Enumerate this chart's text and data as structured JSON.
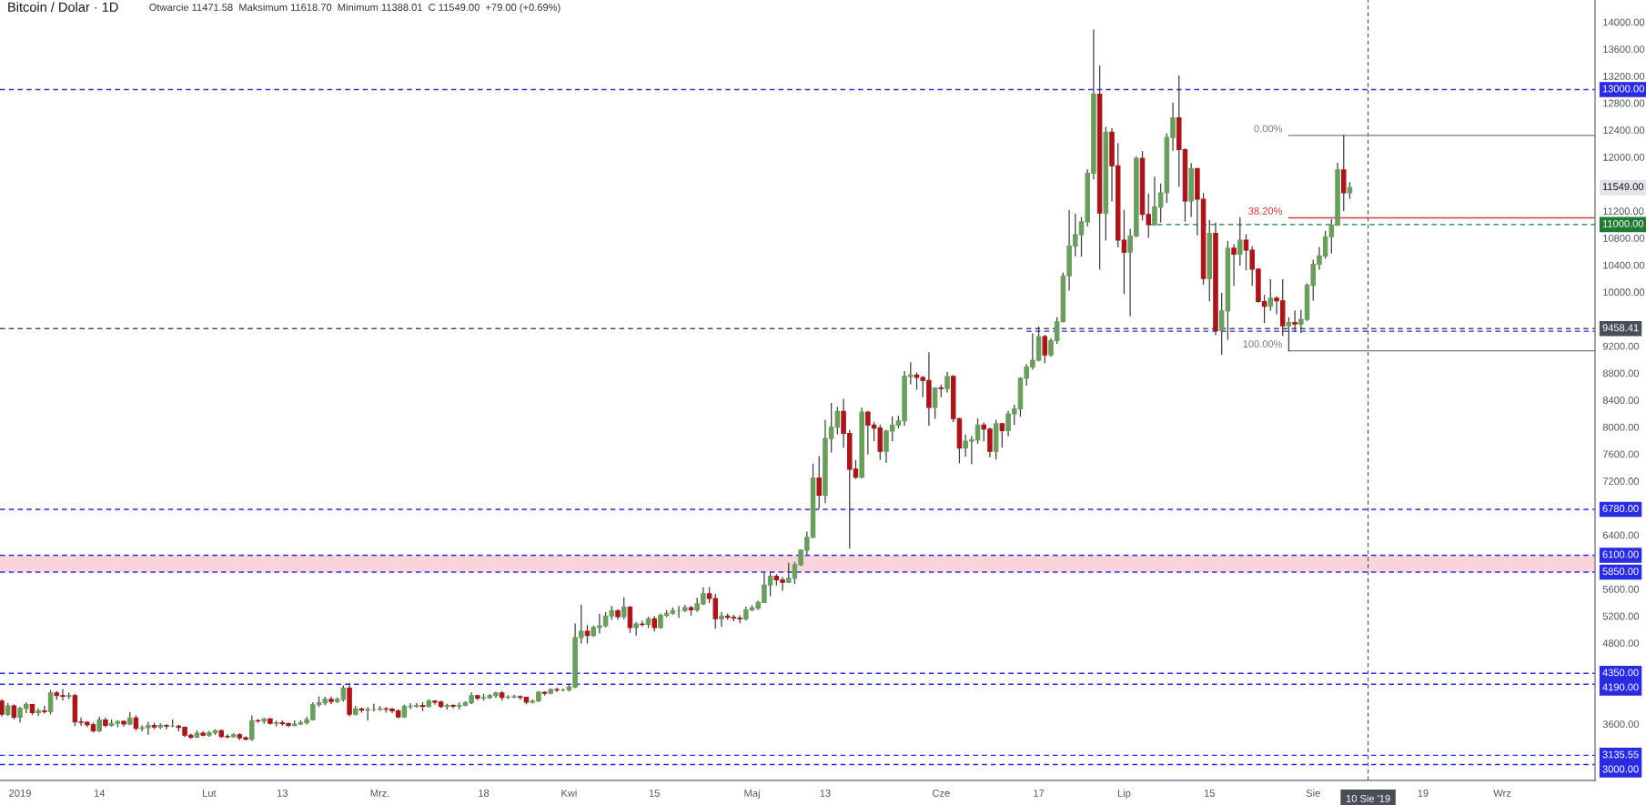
{
  "chart_data": {
    "type": "candlestick",
    "title": "Bitcoin / Dolar · 1D",
    "subtitle": "Otwarcie 11471.58  Maksimum 11618.70  Minimum 11388.01  C 11549.00  +79.00 (+0.69%)",
    "x": [
      "2018-12-29",
      "2018-12-30",
      "2018-12-31",
      "2019-01-01",
      "2019-01-02",
      "2019-01-03",
      "2019-01-04",
      "2019-01-05",
      "2019-01-06",
      "2019-01-07",
      "2019-01-08",
      "2019-01-09",
      "2019-01-10",
      "2019-01-11",
      "2019-01-12",
      "2019-01-13",
      "2019-01-14",
      "2019-01-15",
      "2019-01-16",
      "2019-01-17",
      "2019-01-18",
      "2019-01-19",
      "2019-01-20",
      "2019-01-21",
      "2019-01-22",
      "2019-01-23",
      "2019-01-24",
      "2019-01-25",
      "2019-01-26",
      "2019-01-27",
      "2019-01-28",
      "2019-01-29",
      "2019-01-30",
      "2019-01-31",
      "2019-02-01",
      "2019-02-02",
      "2019-02-03",
      "2019-02-04",
      "2019-02-05",
      "2019-02-06",
      "2019-02-07",
      "2019-02-08",
      "2019-02-09",
      "2019-02-10",
      "2019-02-11",
      "2019-02-12",
      "2019-02-13",
      "2019-02-14",
      "2019-02-15",
      "2019-02-16",
      "2019-02-17",
      "2019-02-18",
      "2019-02-19",
      "2019-02-20",
      "2019-02-21",
      "2019-02-22",
      "2019-02-23",
      "2019-02-24",
      "2019-02-25",
      "2019-02-26",
      "2019-02-27",
      "2019-02-28",
      "2019-03-01",
      "2019-03-02",
      "2019-03-03",
      "2019-03-04",
      "2019-03-05",
      "2019-03-06",
      "2019-03-07",
      "2019-03-08",
      "2019-03-09",
      "2019-03-10",
      "2019-03-11",
      "2019-03-12",
      "2019-03-13",
      "2019-03-14",
      "2019-03-15",
      "2019-03-16",
      "2019-03-17",
      "2019-03-18",
      "2019-03-19",
      "2019-03-20",
      "2019-03-21",
      "2019-03-22",
      "2019-03-23",
      "2019-03-24",
      "2019-03-25",
      "2019-03-26",
      "2019-03-27",
      "2019-03-28",
      "2019-03-29",
      "2019-03-30",
      "2019-03-31",
      "2019-04-01",
      "2019-04-02",
      "2019-04-03",
      "2019-04-04",
      "2019-04-05",
      "2019-04-06",
      "2019-04-07",
      "2019-04-08",
      "2019-04-09",
      "2019-04-10",
      "2019-04-11",
      "2019-04-12",
      "2019-04-13",
      "2019-04-14",
      "2019-04-15",
      "2019-04-16",
      "2019-04-17",
      "2019-04-18",
      "2019-04-19",
      "2019-04-20",
      "2019-04-21",
      "2019-04-22",
      "2019-04-23",
      "2019-04-24",
      "2019-04-25",
      "2019-04-26",
      "2019-04-27",
      "2019-04-28",
      "2019-04-29",
      "2019-04-30",
      "2019-05-01",
      "2019-05-02",
      "2019-05-03",
      "2019-05-04",
      "2019-05-05",
      "2019-05-06",
      "2019-05-07",
      "2019-05-08",
      "2019-05-09",
      "2019-05-10",
      "2019-05-11",
      "2019-05-12",
      "2019-05-13",
      "2019-05-14",
      "2019-05-15",
      "2019-05-16",
      "2019-05-17",
      "2019-05-18",
      "2019-05-19",
      "2019-05-20",
      "2019-05-21",
      "2019-05-22",
      "2019-05-23",
      "2019-05-24",
      "2019-05-25",
      "2019-05-26",
      "2019-05-27",
      "2019-05-28",
      "2019-05-29",
      "2019-05-30",
      "2019-05-31",
      "2019-06-01",
      "2019-06-02",
      "2019-06-03",
      "2019-06-04",
      "2019-06-05",
      "2019-06-06",
      "2019-06-07",
      "2019-06-08",
      "2019-06-09",
      "2019-06-10",
      "2019-06-11",
      "2019-06-12",
      "2019-06-13",
      "2019-06-14",
      "2019-06-15",
      "2019-06-16",
      "2019-06-17",
      "2019-06-18",
      "2019-06-19",
      "2019-06-20",
      "2019-06-21",
      "2019-06-22",
      "2019-06-23",
      "2019-06-24",
      "2019-06-25",
      "2019-06-26",
      "2019-06-27",
      "2019-06-28",
      "2019-06-29",
      "2019-06-30",
      "2019-07-01",
      "2019-07-02",
      "2019-07-03",
      "2019-07-04",
      "2019-07-05",
      "2019-07-06",
      "2019-07-07",
      "2019-07-08",
      "2019-07-09",
      "2019-07-10",
      "2019-07-11",
      "2019-07-12",
      "2019-07-13",
      "2019-07-14",
      "2019-07-15",
      "2019-07-16",
      "2019-07-17",
      "2019-07-18",
      "2019-07-19",
      "2019-07-20",
      "2019-07-21",
      "2019-07-22",
      "2019-07-23",
      "2019-07-24",
      "2019-07-25",
      "2019-07-26",
      "2019-07-27",
      "2019-07-28",
      "2019-07-29",
      "2019-07-30",
      "2019-07-31",
      "2019-08-01",
      "2019-08-02",
      "2019-08-03",
      "2019-08-04",
      "2019-08-05",
      "2019-08-06",
      "2019-08-07"
    ],
    "ohlc": [
      [
        3940,
        3960,
        3720,
        3745
      ],
      [
        3745,
        3900,
        3730,
        3870
      ],
      [
        3870,
        3885,
        3680,
        3700
      ],
      [
        3700,
        3845,
        3630,
        3830
      ],
      [
        3830,
        3915,
        3770,
        3890
      ],
      [
        3890,
        3890,
        3745,
        3770
      ],
      [
        3770,
        3820,
        3730,
        3795
      ],
      [
        3795,
        3860,
        3760,
        3785
      ],
      [
        3785,
        4095,
        3750,
        4060
      ],
      [
        4060,
        4080,
        3970,
        4020
      ],
      [
        4020,
        4110,
        3960,
        4010
      ],
      [
        4010,
        4060,
        3980,
        4020
      ],
      [
        4020,
        4040,
        3580,
        3630
      ],
      [
        3630,
        3690,
        3580,
        3625
      ],
      [
        3625,
        3635,
        3560,
        3590
      ],
      [
        3590,
        3615,
        3480,
        3500
      ],
      [
        3500,
        3700,
        3490,
        3660
      ],
      [
        3660,
        3690,
        3560,
        3580
      ],
      [
        3580,
        3660,
        3570,
        3610
      ],
      [
        3610,
        3650,
        3560,
        3640
      ],
      [
        3640,
        3645,
        3570,
        3600
      ],
      [
        3600,
        3770,
        3590,
        3690
      ],
      [
        3690,
        3720,
        3510,
        3535
      ],
      [
        3535,
        3575,
        3500,
        3545
      ],
      [
        3545,
        3625,
        3450,
        3580
      ],
      [
        3580,
        3610,
        3530,
        3555
      ],
      [
        3555,
        3600,
        3535,
        3580
      ],
      [
        3580,
        3585,
        3530,
        3570
      ],
      [
        3570,
        3660,
        3560,
        3570
      ],
      [
        3570,
        3580,
        3500,
        3550
      ],
      [
        3550,
        3555,
        3415,
        3435
      ],
      [
        3435,
        3450,
        3385,
        3405
      ],
      [
        3405,
        3495,
        3400,
        3465
      ],
      [
        3465,
        3485,
        3425,
        3435
      ],
      [
        3435,
        3490,
        3420,
        3470
      ],
      [
        3470,
        3515,
        3445,
        3500
      ],
      [
        3500,
        3510,
        3400,
        3415
      ],
      [
        3415,
        3440,
        3395,
        3410
      ],
      [
        3410,
        3455,
        3405,
        3440
      ],
      [
        3440,
        3455,
        3370,
        3395
      ],
      [
        3395,
        3410,
        3365,
        3375
      ],
      [
        3375,
        3720,
        3360,
        3650
      ],
      [
        3650,
        3665,
        3625,
        3645
      ],
      [
        3645,
        3680,
        3610,
        3675
      ],
      [
        3675,
        3680,
        3600,
        3610
      ],
      [
        3610,
        3640,
        3575,
        3620
      ],
      [
        3620,
        3650,
        3585,
        3605
      ],
      [
        3605,
        3615,
        3560,
        3580
      ],
      [
        3580,
        3645,
        3575,
        3600
      ],
      [
        3600,
        3650,
        3595,
        3620
      ],
      [
        3620,
        3700,
        3600,
        3665
      ],
      [
        3665,
        3915,
        3660,
        3885
      ],
      [
        3885,
        4000,
        3860,
        3915
      ],
      [
        3915,
        3995,
        3885,
        3965
      ],
      [
        3965,
        4000,
        3905,
        3935
      ],
      [
        3935,
        3985,
        3920,
        3965
      ],
      [
        3965,
        4165,
        3940,
        4130
      ],
      [
        4130,
        4200,
        3720,
        3745
      ],
      [
        3745,
        3860,
        3735,
        3825
      ],
      [
        3825,
        3835,
        3775,
        3805
      ],
      [
        3805,
        3840,
        3660,
        3815
      ],
      [
        3815,
        3890,
        3795,
        3815
      ],
      [
        3815,
        3860,
        3805,
        3825
      ],
      [
        3825,
        3840,
        3775,
        3820
      ],
      [
        3820,
        3830,
        3770,
        3795
      ],
      [
        3795,
        3810,
        3695,
        3705
      ],
      [
        3705,
        3880,
        3700,
        3860
      ],
      [
        3860,
        3900,
        3830,
        3865
      ],
      [
        3865,
        3900,
        3850,
        3875
      ],
      [
        3875,
        3915,
        3800,
        3860
      ],
      [
        3860,
        3960,
        3855,
        3940
      ],
      [
        3940,
        3945,
        3895,
        3925
      ],
      [
        3925,
        3935,
        3845,
        3860
      ],
      [
        3860,
        3890,
        3820,
        3875
      ],
      [
        3875,
        3885,
        3840,
        3865
      ],
      [
        3865,
        3910,
        3825,
        3875
      ],
      [
        3875,
        3930,
        3870,
        3915
      ],
      [
        3915,
        4060,
        3905,
        4020
      ],
      [
        4020,
        4025,
        3960,
        3985
      ],
      [
        3985,
        4040,
        3955,
        3990
      ],
      [
        3990,
        4035,
        3980,
        4020
      ],
      [
        4020,
        4070,
        3995,
        4060
      ],
      [
        4060,
        4080,
        3955,
        3995
      ],
      [
        3995,
        4020,
        3980,
        4000
      ],
      [
        4000,
        4025,
        3990,
        4005
      ],
      [
        4005,
        4015,
        3970,
        3995
      ],
      [
        3995,
        3995,
        3900,
        3925
      ],
      [
        3925,
        3955,
        3910,
        3940
      ],
      [
        3940,
        4080,
        3935,
        4070
      ],
      [
        4070,
        4075,
        4030,
        4055
      ],
      [
        4055,
        4120,
        4050,
        4110
      ],
      [
        4110,
        4130,
        4080,
        4105
      ],
      [
        4105,
        4120,
        4090,
        4105
      ],
      [
        4105,
        4170,
        4090,
        4150
      ],
      [
        4150,
        5080,
        4140,
        4880
      ],
      [
        4880,
        5360,
        4800,
        4975
      ],
      [
        4975,
        5060,
        4800,
        4910
      ],
      [
        4910,
        5050,
        4900,
        5030
      ],
      [
        5030,
        5225,
        4950,
        5055
      ],
      [
        5055,
        5250,
        5040,
        5200
      ],
      [
        5200,
        5340,
        5150,
        5280
      ],
      [
        5280,
        5290,
        5150,
        5190
      ],
      [
        5190,
        5470,
        5160,
        5330
      ],
      [
        5330,
        5340,
        4960,
        5030
      ],
      [
        5030,
        5100,
        4920,
        5080
      ],
      [
        5080,
        5120,
        5050,
        5075
      ],
      [
        5075,
        5180,
        5030,
        5160
      ],
      [
        5160,
        5190,
        4980,
        5030
      ],
      [
        5030,
        5230,
        5020,
        5210
      ],
      [
        5210,
        5280,
        5190,
        5240
      ],
      [
        5240,
        5320,
        5230,
        5280
      ],
      [
        5280,
        5340,
        5180,
        5280
      ],
      [
        5280,
        5355,
        5265,
        5325
      ],
      [
        5325,
        5340,
        5215,
        5290
      ],
      [
        5290,
        5460,
        5270,
        5380
      ],
      [
        5380,
        5620,
        5370,
        5530
      ],
      [
        5530,
        5620,
        5400,
        5460
      ],
      [
        5460,
        5520,
        5020,
        5160
      ],
      [
        5160,
        5250,
        5050,
        5200
      ],
      [
        5200,
        5230,
        5150,
        5180
      ],
      [
        5180,
        5210,
        5130,
        5170
      ],
      [
        5170,
        5200,
        5100,
        5160
      ],
      [
        5160,
        5330,
        5140,
        5290
      ],
      [
        5290,
        5350,
        5280,
        5320
      ],
      [
        5320,
        5420,
        5300,
        5400
      ],
      [
        5400,
        5830,
        5400,
        5660
      ],
      [
        5660,
        5850,
        5500,
        5790
      ],
      [
        5790,
        5810,
        5660,
        5735
      ],
      [
        5735,
        5770,
        5580,
        5700
      ],
      [
        5700,
        5980,
        5700,
        5760
      ],
      [
        5760,
        5990,
        5680,
        5960
      ],
      [
        5960,
        6180,
        5950,
        6175
      ],
      [
        6175,
        6440,
        6120,
        6365
      ],
      [
        6365,
        7450,
        6365,
        7245
      ],
      [
        7245,
        7560,
        6800,
        6990
      ],
      [
        6990,
        8100,
        6880,
        7830
      ],
      [
        7830,
        8350,
        7630,
        8000
      ],
      [
        8000,
        8290,
        7900,
        8230
      ],
      [
        8230,
        8410,
        7700,
        7905
      ],
      [
        7905,
        7950,
        6210,
        7375
      ],
      [
        7375,
        7500,
        7240,
        7255
      ],
      [
        7255,
        8280,
        7250,
        8220
      ],
      [
        8220,
        8230,
        7600,
        8030
      ],
      [
        8030,
        8070,
        7800,
        7985
      ],
      [
        7985,
        8030,
        7520,
        7640
      ],
      [
        7640,
        7950,
        7480,
        7940
      ],
      [
        7940,
        8150,
        7800,
        8030
      ],
      [
        8030,
        8160,
        7990,
        8090
      ],
      [
        8090,
        8820,
        8030,
        8750
      ],
      [
        8750,
        8950,
        8640,
        8770
      ],
      [
        8770,
        8800,
        8560,
        8735
      ],
      [
        8735,
        8750,
        8450,
        8690
      ],
      [
        8690,
        9100,
        8030,
        8290
      ],
      [
        8290,
        8580,
        8130,
        8580
      ],
      [
        8580,
        8620,
        8450,
        8570
      ],
      [
        8570,
        8810,
        8520,
        8750
      ],
      [
        8750,
        8760,
        8080,
        8125
      ],
      [
        8125,
        8130,
        7470,
        7690
      ],
      [
        7690,
        7880,
        7570,
        7790
      ],
      [
        7790,
        7860,
        7460,
        7810
      ],
      [
        7810,
        8120,
        7760,
        8030
      ],
      [
        8030,
        8060,
        7800,
        7970
      ],
      [
        7970,
        7980,
        7560,
        7640
      ],
      [
        7640,
        8100,
        7530,
        8050
      ],
      [
        8050,
        8050,
        7700,
        7945
      ],
      [
        7945,
        8230,
        7870,
        8195
      ],
      [
        8195,
        8320,
        8040,
        8270
      ],
      [
        8270,
        8730,
        8160,
        8725
      ],
      [
        8725,
        8920,
        8620,
        8890
      ],
      [
        8890,
        9380,
        8860,
        8990
      ],
      [
        8990,
        9480,
        8980,
        9340
      ],
      [
        9340,
        9360,
        8950,
        9070
      ],
      [
        9070,
        9310,
        9050,
        9280
      ],
      [
        9280,
        9620,
        9240,
        9560
      ],
      [
        9560,
        10280,
        9560,
        10240
      ],
      [
        10240,
        11210,
        10030,
        10680
      ],
      [
        10680,
        11150,
        10540,
        10850
      ],
      [
        10850,
        11100,
        10530,
        11040
      ],
      [
        11040,
        11810,
        10980,
        11760
      ],
      [
        11760,
        13880,
        11680,
        12930
      ],
      [
        12930,
        13350,
        10340,
        11170
      ],
      [
        11170,
        12440,
        10770,
        12370
      ],
      [
        12370,
        12420,
        11350,
        11870
      ],
      [
        11870,
        12200,
        10670,
        10770
      ],
      [
        10770,
        11210,
        9980,
        10590
      ],
      [
        10590,
        10930,
        9650,
        10830
      ],
      [
        10830,
        12000,
        10820,
        11980
      ],
      [
        11980,
        12080,
        11070,
        11150
      ],
      [
        11150,
        11450,
        10810,
        11000
      ],
      [
        11000,
        11700,
        10990,
        11260
      ],
      [
        11260,
        11600,
        11040,
        11470
      ],
      [
        11470,
        12340,
        11330,
        12290
      ],
      [
        12290,
        12800,
        12100,
        12580
      ],
      [
        12580,
        13200,
        11570,
        12110
      ],
      [
        12110,
        12120,
        11050,
        11350
      ],
      [
        11350,
        11900,
        11120,
        11830
      ],
      [
        11830,
        11830,
        10850,
        11375
      ],
      [
        11375,
        11460,
        10120,
        10200
      ],
      [
        10200,
        11060,
        9870,
        10870
      ],
      [
        10870,
        11020,
        9370,
        9430
      ],
      [
        9430,
        9980,
        9080,
        9720
      ],
      [
        9720,
        10750,
        9300,
        10650
      ],
      [
        10650,
        10700,
        10100,
        10560
      ],
      [
        10560,
        11100,
        10400,
        10770
      ],
      [
        10770,
        10850,
        10330,
        10620
      ],
      [
        10620,
        10670,
        10100,
        10340
      ],
      [
        10340,
        10340,
        9850,
        9860
      ],
      [
        9860,
        9950,
        9550,
        9790
      ],
      [
        9790,
        10180,
        9730,
        9910
      ],
      [
        9910,
        9930,
        9680,
        9870
      ],
      [
        9870,
        10180,
        9360,
        9500
      ],
      [
        9500,
        9620,
        9130,
        9550
      ],
      [
        9550,
        9720,
        9420,
        9525
      ],
      [
        9525,
        9730,
        9400,
        9595
      ],
      [
        9595,
        10120,
        9580,
        10100
      ],
      [
        10100,
        10470,
        9880,
        10410
      ],
      [
        10410,
        10660,
        10340,
        10535
      ],
      [
        10535,
        10900,
        10500,
        10820
      ],
      [
        10820,
        11070,
        10580,
        10990
      ],
      [
        10990,
        11910,
        10990,
        11810
      ],
      [
        11810,
        12320,
        11210,
        11470
      ],
      [
        11471.58,
        11618.7,
        11388.01,
        11549
      ]
    ],
    "value_labels": [
      null,
      null,
      null,
      null,
      null,
      null,
      null,
      null,
      null,
      null,
      null,
      null,
      null,
      null,
      null,
      null,
      null,
      null,
      null,
      null,
      null,
      null,
      null,
      null,
      null,
      null,
      null,
      null,
      null,
      null,
      null,
      null,
      null,
      null,
      null,
      null,
      null,
      null,
      null,
      null,
      null,
      null,
      null,
      null,
      null,
      null,
      null,
      null,
      null,
      null,
      null,
      null,
      null,
      null,
      null,
      null,
      null,
      null,
      null,
      null,
      null,
      null,
      null,
      null,
      null,
      null,
      null,
      null,
      null,
      null,
      null,
      null,
      null,
      null,
      null,
      null,
      null,
      null,
      null,
      null,
      null,
      null,
      null,
      null,
      null,
      null,
      null,
      null,
      null,
      null,
      null,
      null,
      null,
      null,
      null,
      null,
      null,
      null,
      null,
      null,
      null,
      null,
      null,
      null,
      null,
      null,
      null,
      null,
      null,
      null,
      null,
      null,
      null,
      null,
      null,
      null,
      null,
      null,
      null,
      null,
      null,
      null,
      null,
      null,
      null,
      null,
      null,
      null,
      null,
      null,
      null,
      null,
      null,
      null,
      null,
      null,
      null,
      null,
      null,
      null,
      null,
      null,
      null,
      null,
      null,
      null,
      null,
      null,
      null,
      null,
      null,
      null,
      null,
      null,
      null,
      null,
      null,
      null,
      null,
      null,
      null,
      null,
      null,
      null,
      null,
      null,
      null,
      null,
      null,
      null,
      null,
      null,
      null,
      null,
      null,
      null,
      null,
      null,
      null,
      null,
      null,
      null,
      null,
      null,
      null,
      null,
      null,
      null,
      null,
      null,
      null,
      null,
      null,
      null,
      null,
      null,
      null,
      null,
      null,
      null,
      null,
      null,
      null,
      null,
      null,
      null,
      null,
      null,
      null,
      null,
      null,
      null,
      null,
      null,
      null,
      null,
      null,
      null,
      null,
      null,
      null,
      "11549.00"
    ],
    "colors": [
      "#a8161b",
      "#6b9d5e",
      "#a8161b",
      "#6b9d5e",
      "#6b9d5e",
      "#a8161b",
      "#6b9d5e",
      "#a8161b",
      "#6b9d5e",
      "#a8161b",
      "#a8161b",
      "#6b9d5e",
      "#a8161b",
      "#a8161b",
      "#a8161b",
      "#a8161b",
      "#6b9d5e",
      "#a8161b",
      "#6b9d5e",
      "#6b9d5e",
      "#a8161b",
      "#6b9d5e",
      "#a8161b",
      "#6b9d5e",
      "#6b9d5e",
      "#a8161b",
      "#6b9d5e",
      "#a8161b",
      "#6b9d5e",
      "#a8161b",
      "#a8161b",
      "#a8161b",
      "#6b9d5e",
      "#a8161b",
      "#6b9d5e",
      "#6b9d5e",
      "#a8161b",
      "#a8161b",
      "#6b9d5e",
      "#a8161b",
      "#a8161b",
      "#6b9d5e",
      "#a8161b",
      "#6b9d5e",
      "#a8161b",
      "#6b9d5e",
      "#a8161b",
      "#a8161b",
      "#6b9d5e",
      "#6b9d5e",
      "#6b9d5e",
      "#6b9d5e",
      "#6b9d5e",
      "#6b9d5e",
      "#a8161b",
      "#6b9d5e",
      "#6b9d5e",
      "#a8161b",
      "#6b9d5e",
      "#a8161b",
      "#6b9d5e",
      "#6b9d5e",
      "#6b9d5e",
      "#a8161b",
      "#a8161b",
      "#a8161b",
      "#6b9d5e",
      "#6b9d5e",
      "#6b9d5e",
      "#a8161b",
      "#6b9d5e",
      "#a8161b",
      "#a8161b",
      "#6b9d5e",
      "#a8161b",
      "#6b9d5e",
      "#6b9d5e",
      "#6b9d5e",
      "#a8161b",
      "#6b9d5e",
      "#6b9d5e",
      "#6b9d5e",
      "#a8161b",
      "#6b9d5e",
      "#6b9d5e",
      "#a8161b",
      "#a8161b",
      "#6b9d5e",
      "#6b9d5e",
      "#a8161b",
      "#6b9d5e",
      "#a8161b",
      "#6b9d5e",
      "#6b9d5e",
      "#6b9d5e",
      "#6b9d5e",
      "#a8161b",
      "#6b9d5e",
      "#6b9d5e",
      "#6b9d5e",
      "#6b9d5e",
      "#a8161b",
      "#6b9d5e",
      "#a8161b",
      "#6b9d5e",
      "#a8161b",
      "#6b9d5e",
      "#a8161b",
      "#6b9d5e",
      "#6b9d5e",
      "#6b9d5e",
      "#6b9d5e",
      "#6b9d5e",
      "#a8161b",
      "#6b9d5e",
      "#6b9d5e",
      "#a8161b",
      "#a8161b",
      "#6b9d5e",
      "#a8161b",
      "#a8161b",
      "#a8161b",
      "#6b9d5e",
      "#6b9d5e",
      "#6b9d5e",
      "#6b9d5e",
      "#6b9d5e",
      "#a8161b",
      "#a8161b",
      "#6b9d5e",
      "#6b9d5e",
      "#6b9d5e",
      "#6b9d5e",
      "#6b9d5e",
      "#a8161b",
      "#6b9d5e",
      "#6b9d5e",
      "#6b9d5e",
      "#a8161b",
      "#a8161b",
      "#a8161b",
      "#6b9d5e",
      "#a8161b",
      "#a8161b",
      "#a8161b",
      "#6b9d5e",
      "#6b9d5e",
      "#6b9d5e",
      "#6b9d5e",
      "#6b9d5e",
      "#a8161b",
      "#a8161b",
      "#a8161b",
      "#6b9d5e",
      "#a8161b",
      "#6b9d5e",
      "#a8161b",
      "#a8161b",
      "#6b9d5e",
      "#6b9d5e",
      "#6b9d5e",
      "#a8161b",
      "#a8161b",
      "#6b9d5e",
      "#a8161b",
      "#6b9d5e",
      "#6b9d5e",
      "#6b9d5e",
      "#6b9d5e",
      "#6b9d5e",
      "#6b9d5e",
      "#a8161b",
      "#6b9d5e",
      "#6b9d5e",
      "#6b9d5e",
      "#6b9d5e",
      "#6b9d5e",
      "#6b9d5e",
      "#6b9d5e",
      "#6b9d5e",
      "#a8161b",
      "#6b9d5e",
      "#a8161b",
      "#a8161b",
      "#a8161b",
      "#6b9d5e",
      "#6b9d5e",
      "#a8161b",
      "#a8161b",
      "#6b9d5e",
      "#6b9d5e",
      "#6b9d5e",
      "#6b9d5e",
      "#a8161b",
      "#a8161b",
      "#6b9d5e",
      "#a8161b",
      "#a8161b",
      "#6b9d5e",
      "#a8161b",
      "#6b9d5e",
      "#6b9d5e",
      "#a8161b",
      "#6b9d5e",
      "#a8161b",
      "#a8161b",
      "#a8161b",
      "#a8161b",
      "#6b9d5e",
      "#a8161b",
      "#a8161b",
      "#6b9d5e",
      "#a8161b",
      "#6b9d5e",
      "#6b9d5e",
      "#6b9d5e",
      "#6b9d5e",
      "#6b9d5e",
      "#6b9d5e",
      "#6b9d5e",
      "#a8161b",
      "#6b9d5e"
    ],
    "series": [
      {
        "type": "line",
        "x": [
          "2019-07-28",
          "2019-09-16T05:00"
        ],
        "values": [
          12320,
          12320
        ],
        "name": "0.00%",
        "color": "#7a7a7a",
        "line_style": "solid"
      },
      {
        "type": "line",
        "x": [
          "2019-07-28",
          "2019-09-16T05:00"
        ],
        "values": [
          11100,
          11100
        ],
        "name": "38.20%",
        "color": "#d9363e",
        "line_style": "solid"
      },
      {
        "type": "line",
        "x": [
          "2019-07-28",
          "2019-09-16T05:00"
        ],
        "values": [
          9130,
          9130
        ],
        "name": "100.00%",
        "color": "#7a7a7a",
        "line_style": "solid"
      },
      {
        "type": "line",
        "x": [
          "2019-07-05",
          "2019-09-16T05:00"
        ],
        "values": [
          11000,
          11000
        ],
        "color": "#1f7a33",
        "line_style": "dashed",
        "value_labels": [
          null,
          "11000.00"
        ]
      },
      {
        "type": "line",
        "x": [
          "2019-06-15",
          "2019-09-16T05:00"
        ],
        "values": [
          9420,
          9420
        ],
        "color": "#2b2be0",
        "line_style": "dashed"
      }
    ],
    "ref_lines": [
      {
        "axis": "y",
        "value": 13000,
        "label": "13000.00",
        "color": "#2b2be0",
        "line_style": "dashed"
      },
      {
        "axis": "y",
        "value": 6780,
        "label": "6780.00",
        "color": "#2b2be0",
        "line_style": "dashed"
      },
      {
        "axis": "y",
        "value": 6100,
        "label": "6100.00",
        "color": "#2b2be0",
        "line_style": "dashed"
      },
      {
        "axis": "y",
        "value": 5850,
        "label": "5850.00",
        "color": "#2b2be0",
        "line_style": "dashed"
      },
      {
        "axis": "y",
        "value": 4350,
        "label": "4350.00",
        "color": "#2b2be0",
        "line_style": "dashed"
      },
      {
        "axis": "y",
        "value": 4190,
        "label": "4190.00",
        "color": "#2b2be0",
        "line_style": "dashed"
      },
      {
        "axis": "y",
        "value": 3135.55,
        "label": "3135.55",
        "color": "#2b2be0",
        "line_style": "dashed"
      },
      {
        "axis": "y",
        "value": 3000,
        "label": "3000.00",
        "color": "#2b2be0",
        "line_style": "dashed"
      },
      {
        "axis": "y",
        "value": 9458.41,
        "label": "9458.41",
        "color": "#4a4e59",
        "line_style": "dashed"
      },
      {
        "axis": "x",
        "value": "2019-08-10",
        "label": "10 Sie '19",
        "color": "#4a4e59",
        "line_style": "dashed"
      }
    ],
    "bands": [
      {
        "axis": "y",
        "from": 5850,
        "to": 6100,
        "color": "#f9d4da"
      }
    ],
    "xlim": [
      "2018-12-28T17:00",
      "2019-09-16T05:00"
    ],
    "ylim": [
      2764,
      14327
    ],
    "xticks": [
      {
        "value": "2019-01-01",
        "label": "2019"
      },
      {
        "value": "2019-01-14",
        "label": "14"
      },
      {
        "value": "2019-02-01",
        "label": "Lut"
      },
      {
        "value": "2019-02-13",
        "label": "13"
      },
      {
        "value": "2019-03-01",
        "label": "Mrz."
      },
      {
        "value": "2019-03-18",
        "label": "18"
      },
      {
        "value": "2019-04-01",
        "label": "Kwi"
      },
      {
        "value": "2019-04-15",
        "label": "15"
      },
      {
        "value": "2019-05-01",
        "label": "Maj"
      },
      {
        "value": "2019-05-13",
        "label": "13"
      },
      {
        "value": "2019-06-01",
        "label": "Cze"
      },
      {
        "value": "2019-06-17",
        "label": "17"
      },
      {
        "value": "2019-07-01",
        "label": "Lip"
      },
      {
        "value": "2019-07-15",
        "label": "15"
      },
      {
        "value": "2019-08-01",
        "label": "Sie"
      },
      {
        "value": "2019-08-19",
        "label": "19"
      },
      {
        "value": "2019-09-01",
        "label": "Wrz"
      }
    ],
    "yticks": [
      {
        "value": 14000,
        "label": "14000.00"
      },
      {
        "value": 13600,
        "label": "13600.00"
      },
      {
        "value": 13200,
        "label": "13200.00"
      },
      {
        "value": 12800,
        "label": "12800.00"
      },
      {
        "value": 12400,
        "label": "12400.00"
      },
      {
        "value": 12000,
        "label": "12000.00"
      },
      {
        "value": 11200,
        "label": "11200.00"
      },
      {
        "value": 10800,
        "label": "10800.00"
      },
      {
        "value": 10400,
        "label": "10400.00"
      },
      {
        "value": 10000,
        "label": "10000.00"
      },
      {
        "value": 9200,
        "label": "9200.00"
      },
      {
        "value": 8800,
        "label": "8800.00"
      },
      {
        "value": 8400,
        "label": "8400.00"
      },
      {
        "value": 8000,
        "label": "8000.00"
      },
      {
        "value": 7600,
        "label": "7600.00"
      },
      {
        "value": 7200,
        "label": "7200.00"
      },
      {
        "value": 6400,
        "label": "6400.00"
      },
      {
        "value": 5600,
        "label": "5600.00"
      },
      {
        "value": 5200,
        "label": "5200.00"
      },
      {
        "value": 4800,
        "label": "4800.00"
      },
      {
        "value": 3600,
        "label": "3600.00"
      }
    ]
  }
}
